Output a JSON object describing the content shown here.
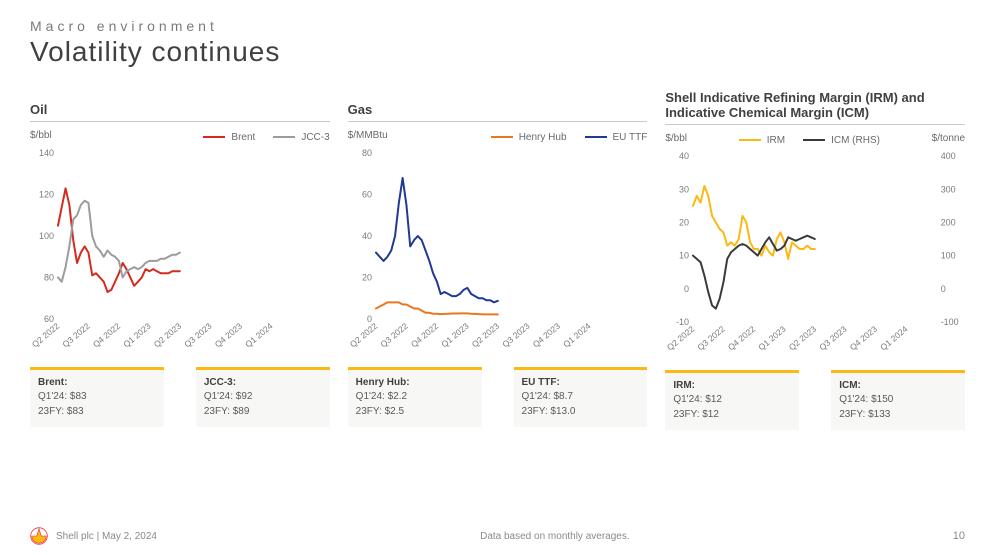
{
  "header": {
    "eyebrow": "Macro environment",
    "title": "Volatility continues"
  },
  "x_categories": [
    "Q2 2022",
    "Q3 2022",
    "Q4 2022",
    "Q1 2023",
    "Q2 2023",
    "Q3 2023",
    "Q4 2023",
    "Q1 2024"
  ],
  "x_color": "#7a7a7a",
  "x_fontsize": 8.5,
  "label_fontsize": 9,
  "callout_border_default": "#fcb813",
  "panels": [
    {
      "key": "oil",
      "title": "Oil",
      "unit_left": "$/bbl",
      "unit_right": null,
      "ylim_left": [
        60,
        140
      ],
      "ytick_step_left": 20,
      "ylim_right": null,
      "grid_color": "#d9d9d9",
      "background_color": "#ffffff",
      "line_width": 2,
      "series": [
        {
          "name": "Brent",
          "color": "#d52b1e",
          "axis": "left",
          "values": [
            [
              105,
              114,
              123,
              115,
              98,
              87,
              92,
              95,
              92
            ],
            [
              84,
              81,
              82,
              80,
              78,
              73,
              74,
              78,
              82
            ],
            [
              85,
              87,
              84,
              80,
              76,
              78,
              80,
              84,
              83
            ],
            [
              85,
              84,
              83,
              82,
              82,
              82,
              83,
              83,
              83
            ]
          ]
        },
        {
          "name": "JCC-3",
          "color": "#9c9c9c",
          "axis": "left",
          "values": [
            [
              80,
              78,
              85,
              95,
              108,
              110,
              115,
              117,
              116
            ],
            [
              108,
              100,
              95,
              93,
              90,
              93,
              91,
              90,
              88
            ],
            [
              82,
              80,
              83,
              84,
              85,
              84,
              85,
              87,
              88
            ],
            [
              87,
              88,
              88,
              89,
              89,
              90,
              91,
              91,
              92
            ]
          ]
        }
      ],
      "callouts": [
        {
          "name": "Brent:",
          "lines": [
            "Q1'24: $83",
            "23FY: $83"
          ],
          "border_color": "#fcb813"
        },
        {
          "name": "JCC-3:",
          "lines": [
            "Q1'24: $92",
            "23FY: $89"
          ],
          "border_color": "#fcb813"
        }
      ]
    },
    {
      "key": "gas",
      "title": "Gas",
      "unit_left": "$/MMBtu",
      "unit_right": null,
      "ylim_left": [
        0,
        80
      ],
      "ytick_step_left": 20,
      "ylim_right": null,
      "grid_color": "#d9d9d9",
      "background_color": "#ffffff",
      "line_width": 2,
      "series": [
        {
          "name": "Henry Hub",
          "color": "#e87722",
          "axis": "left",
          "values": [
            [
              5,
              6,
              7,
              8,
              8,
              8,
              8,
              7,
              7
            ],
            [
              6,
              6,
              5,
              5,
              4,
              3,
              3,
              2.5,
              2.5
            ],
            [
              2.3,
              2.3,
              2.4,
              2.5,
              2.6,
              2.6,
              2.7,
              2.7,
              2.7
            ],
            [
              2.6,
              2.5,
              2.4,
              2.3,
              2.2,
              2.2,
              2.2,
              2.2,
              2.2
            ]
          ]
        },
        {
          "name": "EU TTF",
          "color": "#1f3a93",
          "axis": "left",
          "values": [
            [
              32,
              30,
              28,
              30,
              33,
              40,
              56,
              68,
              55
            ],
            [
              44,
              35,
              38,
              40,
              38,
              33,
              28,
              22,
              18
            ],
            [
              14,
              12,
              13,
              12,
              11,
              11,
              12,
              14,
              15
            ],
            [
              13,
              12,
              11,
              10,
              10,
              9,
              9,
              8,
              8.7
            ]
          ]
        }
      ],
      "callouts": [
        {
          "name": "Henry Hub:",
          "lines": [
            "Q1'24: $2.2",
            "23FY: $2.5"
          ],
          "border_color": "#fcb813"
        },
        {
          "name": "EU TTF:",
          "lines": [
            "Q1'24: $8.7",
            "23FY: $13.0"
          ],
          "border_color": "#fcb813"
        }
      ]
    },
    {
      "key": "margins",
      "title": "Shell Indicative Refining Margin (IRM) and Indicative Chemical Margin (ICM)",
      "unit_left": "$/bbl",
      "unit_right": "$/tonne",
      "ylim_left": [
        -10,
        40
      ],
      "ytick_step_left": 10,
      "ylim_right": [
        -100,
        400
      ],
      "ytick_step_right": 100,
      "grid_color": "#d9d9d9",
      "background_color": "#ffffff",
      "line_width": 2,
      "series": [
        {
          "name": "IRM",
          "color": "#fcb813",
          "axis": "left",
          "values": [
            [
              25,
              28,
              26,
              31,
              28,
              22,
              20,
              18,
              17
            ],
            [
              12,
              13,
              14,
              13,
              15,
              22,
              20,
              14,
              12
            ],
            [
              8,
              12,
              10,
              13,
              11,
              10,
              15,
              17,
              14
            ],
            [
              12,
              9,
              14,
              13,
              12,
              12,
              13,
              12,
              12
            ]
          ]
        },
        {
          "name": "ICM (RHS)",
          "color": "#3a3a3a",
          "axis": "right",
          "values": [
            [
              100,
              90,
              80,
              40,
              -10,
              -50,
              -60,
              -30,
              20
            ],
            [
              60,
              90,
              110,
              120,
              130,
              135,
              130,
              120,
              110
            ],
            [
              90,
              100,
              120,
              140,
              155,
              135,
              115,
              120,
              130
            ],
            [
              150,
              155,
              150,
              145,
              150,
              155,
              160,
              155,
              150
            ]
          ]
        }
      ],
      "callouts": [
        {
          "name": "IRM:",
          "lines": [
            "Q1'24: $12",
            "23FY: $12"
          ],
          "border_color": "#fcb813"
        },
        {
          "name": "ICM:",
          "lines": [
            "Q1'24: $150",
            "23FY: $133"
          ],
          "border_color": "#fcb813"
        }
      ]
    }
  ],
  "footer": {
    "company_date": "Shell plc | May 2, 2024",
    "note": "Data based on monthly averages.",
    "page": "10"
  },
  "logo": {
    "fill": "#ed1c24",
    "stroke": "#fcb813"
  }
}
